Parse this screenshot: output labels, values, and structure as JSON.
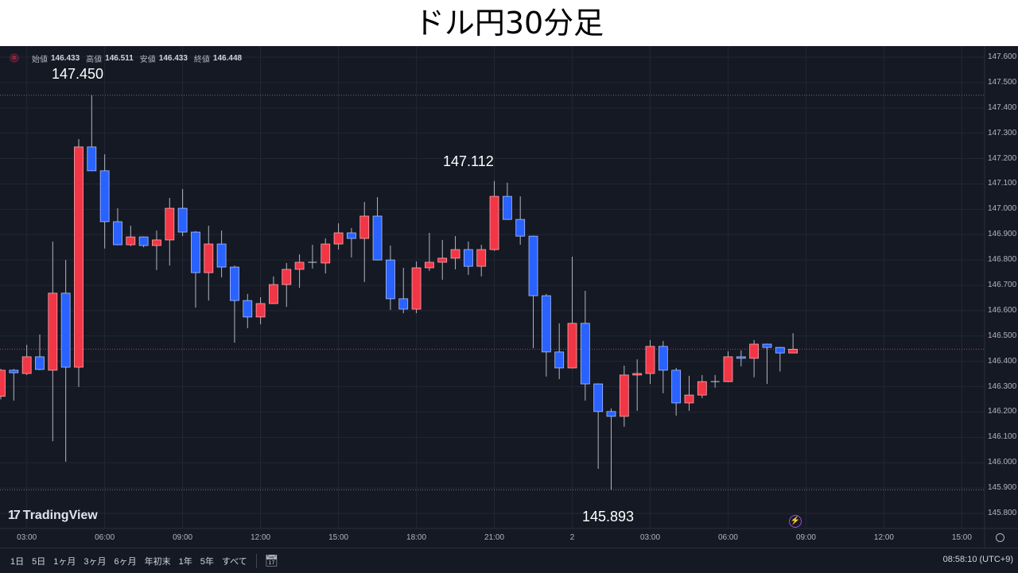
{
  "title": "ドル円30分足",
  "legend": {
    "open_label": "始値",
    "open": "146.433",
    "high_label": "高値",
    "high": "146.511",
    "low_label": "安値",
    "low": "146.433",
    "close_label": "終値",
    "close": "146.448"
  },
  "annotations": {
    "high": "147.450",
    "mid_high": "147.112",
    "low": "145.893"
  },
  "logo": "TradingView",
  "range_buttons": [
    "1日",
    "5日",
    "1ヶ月",
    "3ヶ月",
    "6ヶ月",
    "年初末",
    "1年",
    "5年",
    "すべて"
  ],
  "clock": "08:58:10 (UTC+9)",
  "colors": {
    "up": "#f23645",
    "down": "#2962ff",
    "background": "#151924",
    "wick": "#b2b5be"
  },
  "chart_data": {
    "type": "candlestick",
    "title": "ドル円30分足",
    "interval": "30分",
    "ylim": [
      145.8,
      147.6
    ],
    "y_ticks": [
      "147.600",
      "147.500",
      "147.400",
      "147.300",
      "147.200",
      "147.100",
      "147.000",
      "146.900",
      "146.800",
      "146.700",
      "146.600",
      "146.500",
      "146.400",
      "146.300",
      "146.200",
      "146.100",
      "146.000",
      "145.900",
      "145.800"
    ],
    "x_ticks": [
      "03:00",
      "06:00",
      "09:00",
      "12:00",
      "15:00",
      "18:00",
      "21:00",
      "2",
      "03:00",
      "06:00",
      "09:00",
      "12:00",
      "15:00"
    ],
    "grid": true,
    "reference_lines": {
      "high": 147.45,
      "low": 145.893,
      "last": 146.448
    },
    "candles": [
      {
        "t": "02:00",
        "o": 146.262,
        "h": 146.37,
        "l": 146.25,
        "c": 146.365
      },
      {
        "t": "02:30",
        "o": 146.365,
        "h": 146.37,
        "l": 146.245,
        "c": 146.355
      },
      {
        "t": "03:00",
        "o": 146.352,
        "h": 146.465,
        "l": 146.346,
        "c": 146.418
      },
      {
        "t": "03:30",
        "o": 146.418,
        "h": 146.506,
        "l": 146.365,
        "c": 146.368
      },
      {
        "t": "04:00",
        "o": 146.365,
        "h": 146.873,
        "l": 146.085,
        "c": 146.669
      },
      {
        "t": "04:30",
        "o": 146.669,
        "h": 146.8,
        "l": 146.004,
        "c": 146.377
      },
      {
        "t": "05:00",
        "o": 146.377,
        "h": 147.277,
        "l": 146.299,
        "c": 147.246
      },
      {
        "t": "05:30",
        "o": 147.246,
        "h": 147.45,
        "l": 147.15,
        "c": 147.152
      },
      {
        "t": "06:00",
        "o": 147.152,
        "h": 147.217,
        "l": 146.845,
        "c": 146.951
      },
      {
        "t": "06:30",
        "o": 146.951,
        "h": 147.004,
        "l": 146.858,
        "c": 146.86
      },
      {
        "t": "07:00",
        "o": 146.86,
        "h": 146.935,
        "l": 146.854,
        "c": 146.891
      },
      {
        "t": "07:30",
        "o": 146.891,
        "h": 146.893,
        "l": 146.85,
        "c": 146.857
      },
      {
        "t": "08:00",
        "o": 146.857,
        "h": 146.916,
        "l": 146.76,
        "c": 146.879
      },
      {
        "t": "08:30",
        "o": 146.879,
        "h": 147.045,
        "l": 146.778,
        "c": 147.004
      },
      {
        "t": "09:00",
        "o": 147.004,
        "h": 147.08,
        "l": 146.894,
        "c": 146.91
      },
      {
        "t": "09:30",
        "o": 146.91,
        "h": 146.914,
        "l": 146.612,
        "c": 146.75
      },
      {
        "t": "10:00",
        "o": 146.75,
        "h": 146.935,
        "l": 146.64,
        "c": 146.863
      },
      {
        "t": "10:30",
        "o": 146.863,
        "h": 146.916,
        "l": 146.731,
        "c": 146.772
      },
      {
        "t": "11:00",
        "o": 146.772,
        "h": 146.778,
        "l": 146.474,
        "c": 146.64
      },
      {
        "t": "11:30",
        "o": 146.64,
        "h": 146.666,
        "l": 146.531,
        "c": 146.575
      },
      {
        "t": "12:00",
        "o": 146.575,
        "h": 146.653,
        "l": 146.546,
        "c": 146.628
      },
      {
        "t": "12:30",
        "o": 146.628,
        "h": 146.735,
        "l": 146.626,
        "c": 146.703
      },
      {
        "t": "13:00",
        "o": 146.703,
        "h": 146.788,
        "l": 146.615,
        "c": 146.763
      },
      {
        "t": "13:30",
        "o": 146.763,
        "h": 146.822,
        "l": 146.69,
        "c": 146.791
      },
      {
        "t": "14:00",
        "o": 146.791,
        "h": 146.86,
        "l": 146.766,
        "c": 146.791
      },
      {
        "t": "14:30",
        "o": 146.788,
        "h": 146.885,
        "l": 146.747,
        "c": 146.863
      },
      {
        "t": "15:00",
        "o": 146.863,
        "h": 146.945,
        "l": 146.841,
        "c": 146.907
      },
      {
        "t": "15:30",
        "o": 146.907,
        "h": 146.926,
        "l": 146.81,
        "c": 146.885
      },
      {
        "t": "16:00",
        "o": 146.885,
        "h": 147.029,
        "l": 146.713,
        "c": 146.973
      },
      {
        "t": "16:30",
        "o": 146.973,
        "h": 147.048,
        "l": 146.798,
        "c": 146.8
      },
      {
        "t": "17:00",
        "o": 146.8,
        "h": 146.857,
        "l": 146.603,
        "c": 146.647
      },
      {
        "t": "17:30",
        "o": 146.647,
        "h": 146.769,
        "l": 146.59,
        "c": 146.606
      },
      {
        "t": "18:00",
        "o": 146.606,
        "h": 146.794,
        "l": 146.59,
        "c": 146.769
      },
      {
        "t": "18:30",
        "o": 146.769,
        "h": 146.907,
        "l": 146.757,
        "c": 146.791
      },
      {
        "t": "19:00",
        "o": 146.791,
        "h": 146.879,
        "l": 146.722,
        "c": 146.807
      },
      {
        "t": "19:30",
        "o": 146.807,
        "h": 146.894,
        "l": 146.763,
        "c": 146.841
      },
      {
        "t": "20:00",
        "o": 146.841,
        "h": 146.873,
        "l": 146.741,
        "c": 146.775
      },
      {
        "t": "20:30",
        "o": 146.775,
        "h": 146.86,
        "l": 146.735,
        "c": 146.841
      },
      {
        "t": "21:00",
        "o": 146.841,
        "h": 147.112,
        "l": 146.836,
        "c": 147.051
      },
      {
        "t": "21:30",
        "o": 147.051,
        "h": 147.105,
        "l": 146.958,
        "c": 146.96
      },
      {
        "t": "22:00",
        "o": 146.96,
        "h": 147.051,
        "l": 146.86,
        "c": 146.894
      },
      {
        "t": "22:30",
        "o": 146.894,
        "h": 146.896,
        "l": 146.452,
        "c": 146.659
      },
      {
        "t": "23:00",
        "o": 146.659,
        "h": 146.666,
        "l": 146.34,
        "c": 146.437
      },
      {
        "t": "23:30",
        "o": 146.437,
        "h": 146.55,
        "l": 146.33,
        "c": 146.374
      },
      {
        "t": "00:00",
        "o": 146.374,
        "h": 146.813,
        "l": 146.372,
        "c": 146.55
      },
      {
        "t": "00:30",
        "o": 146.55,
        "h": 146.678,
        "l": 146.245,
        "c": 146.311
      },
      {
        "t": "01:00",
        "o": 146.311,
        "h": 146.313,
        "l": 145.976,
        "c": 146.202
      },
      {
        "t": "01:30",
        "o": 146.202,
        "h": 146.214,
        "l": 145.893,
        "c": 146.183
      },
      {
        "t": "02:00",
        "o": 146.183,
        "h": 146.383,
        "l": 146.142,
        "c": 146.346
      },
      {
        "t": "02:30",
        "o": 146.346,
        "h": 146.408,
        "l": 146.205,
        "c": 146.352
      },
      {
        "t": "03:00",
        "o": 146.352,
        "h": 146.484,
        "l": 146.311,
        "c": 146.459
      },
      {
        "t": "03:30",
        "o": 146.459,
        "h": 146.48,
        "l": 146.274,
        "c": 146.365
      },
      {
        "t": "04:00",
        "o": 146.365,
        "h": 146.374,
        "l": 146.186,
        "c": 146.236
      },
      {
        "t": "04:30",
        "o": 146.236,
        "h": 146.343,
        "l": 146.205,
        "c": 146.267
      },
      {
        "t": "05:00",
        "o": 146.267,
        "h": 146.346,
        "l": 146.255,
        "c": 146.32
      },
      {
        "t": "05:30",
        "o": 146.32,
        "h": 146.346,
        "l": 146.296,
        "c": 146.32
      },
      {
        "t": "06:00",
        "o": 146.32,
        "h": 146.44,
        "l": 146.318,
        "c": 146.418
      },
      {
        "t": "06:30",
        "o": 146.418,
        "h": 146.443,
        "l": 146.38,
        "c": 146.412
      },
      {
        "t": "07:00",
        "o": 146.412,
        "h": 146.484,
        "l": 146.337,
        "c": 146.468
      },
      {
        "t": "07:30",
        "o": 146.468,
        "h": 146.47,
        "l": 146.311,
        "c": 146.455
      },
      {
        "t": "08:00",
        "o": 146.455,
        "h": 146.457,
        "l": 146.36,
        "c": 146.433
      },
      {
        "t": "08:30",
        "o": 146.433,
        "h": 146.511,
        "l": 146.433,
        "c": 146.448
      }
    ]
  }
}
